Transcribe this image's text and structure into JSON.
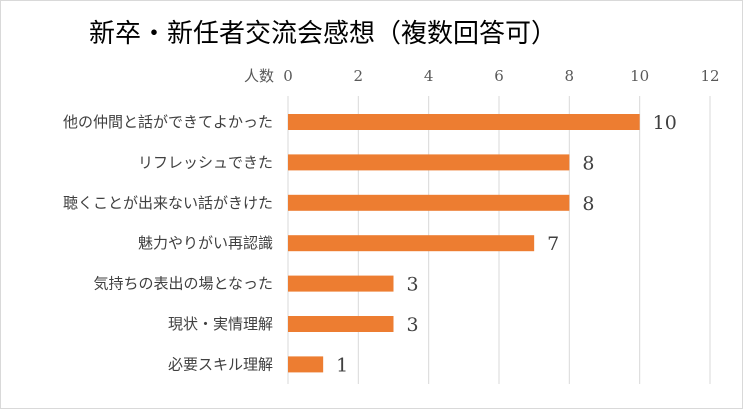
{
  "chart_data": {
    "type": "bar",
    "orientation": "horizontal",
    "title": "新卒・新任者交流会感想（複数回答可）",
    "xlabel": "人数",
    "xlim": [
      0,
      12
    ],
    "x_ticks": [
      0,
      2,
      4,
      6,
      8,
      10,
      12
    ],
    "categories": [
      "他の仲間と話ができてよかった",
      "リフレッシュできた",
      "聴くことが出来ない話がきけた",
      "魅力やりがい再認識",
      "気持ちの表出の場となった",
      "現状・実情理解",
      "必要スキル理解"
    ],
    "values": [
      10,
      8,
      8,
      7,
      3,
      3,
      1
    ],
    "data_labels": [
      "10",
      "8",
      "8",
      "7",
      "3",
      "3",
      "1"
    ],
    "bar_color": "#ED7D31",
    "gridlines": "vertical",
    "legend": "none"
  }
}
